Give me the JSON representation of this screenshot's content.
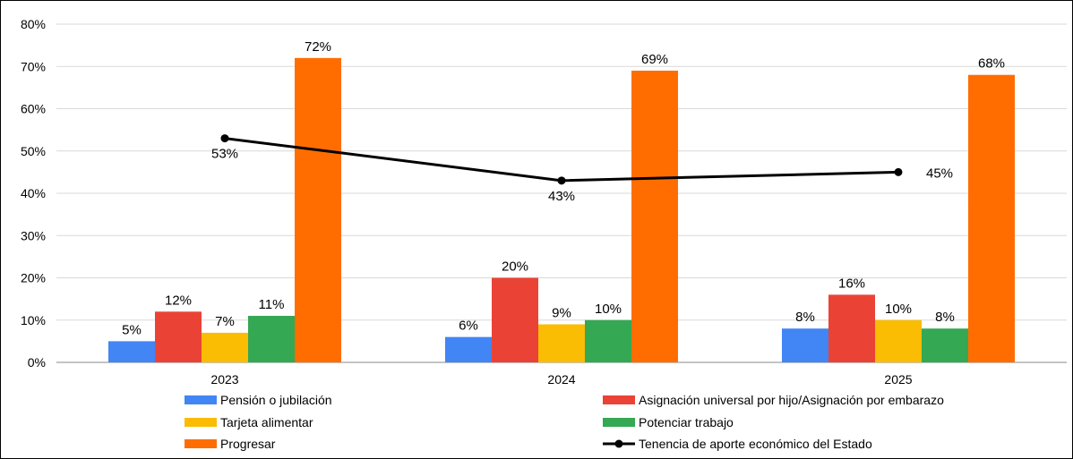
{
  "chart_data": {
    "type": "bar",
    "categories": [
      "2023",
      "2024",
      "2025"
    ],
    "ylim": [
      0,
      80
    ],
    "yticks": [
      0,
      10,
      20,
      30,
      40,
      50,
      60,
      70,
      80
    ],
    "ytick_labels": [
      "0%",
      "10%",
      "20%",
      "30%",
      "40%",
      "50%",
      "60%",
      "70%",
      "80%"
    ],
    "grid": true,
    "legend_position": "bottom",
    "series": [
      {
        "name": "Pensión o jubilación",
        "color": "#4285F4",
        "values": [
          5,
          6,
          8
        ],
        "labels": [
          "5%",
          "6%",
          "8%"
        ]
      },
      {
        "name": "Asignación universal por hijo/Asignación por embarazo",
        "color": "#EA4335",
        "values": [
          12,
          20,
          16
        ],
        "labels": [
          "12%",
          "20%",
          "16%"
        ]
      },
      {
        "name": "Tarjeta alimentar",
        "color": "#FBBC04",
        "values": [
          7,
          9,
          10
        ],
        "labels": [
          "7%",
          "9%",
          "10%"
        ]
      },
      {
        "name": "Potenciar trabajo",
        "color": "#34A853",
        "values": [
          11,
          10,
          8
        ],
        "labels": [
          "11%",
          "10%",
          "8%"
        ]
      },
      {
        "name": "Progresar",
        "color": "#FF6D01",
        "values": [
          72,
          69,
          68
        ],
        "labels": [
          "72%",
          "69%",
          "68%"
        ]
      }
    ],
    "line_series": {
      "name": "Tenencia de aporte económico del Estado",
      "color": "#000000",
      "values": [
        53,
        43,
        45
      ],
      "labels": [
        "53%",
        "43%",
        "45%"
      ]
    }
  }
}
